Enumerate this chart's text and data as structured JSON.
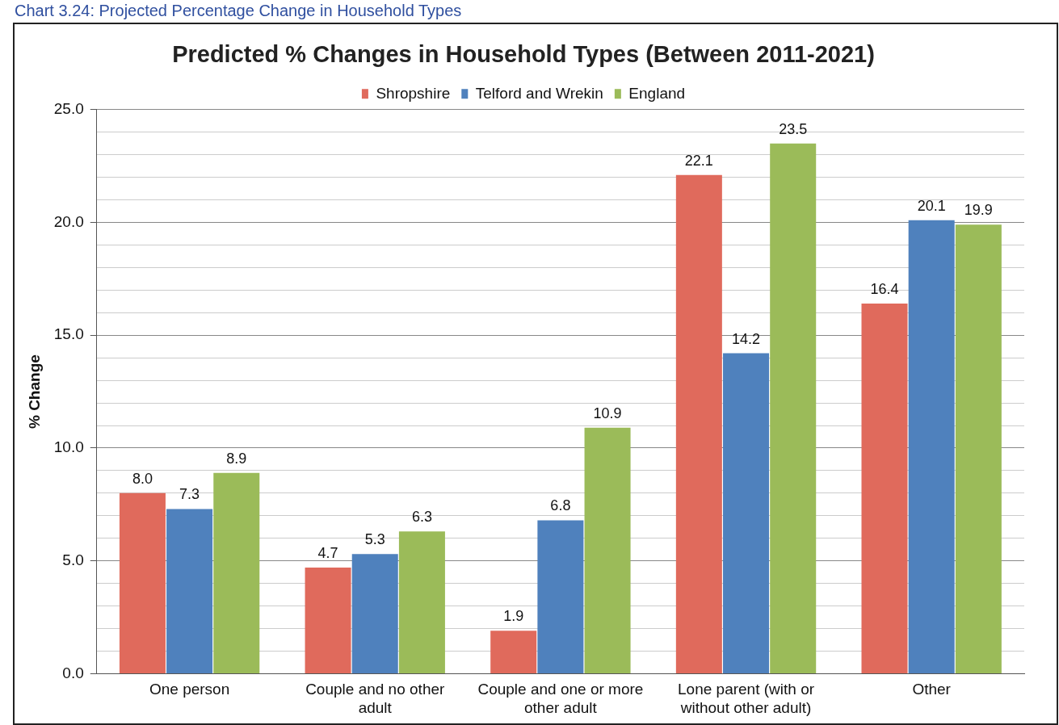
{
  "chart_data": {
    "type": "bar",
    "title": "Predicted % Changes in Household Types (Between 2011-2021)",
    "ylabel": "% Change",
    "annotations": [
      "Chart 3.24: Projected Percentage Change in Household Types"
    ],
    "categories": [
      "One person",
      "Couple and no other adult",
      "Couple and one or more other adult",
      "Lone parent (with or without other adult)",
      "Other"
    ],
    "series": [
      {
        "name": "Shropshire",
        "color": "#e06a5c",
        "values": [
          8.0,
          4.7,
          1.9,
          22.1,
          16.4
        ],
        "value_labels": [
          "8.0",
          "4.7",
          "1.9",
          "22.1",
          "16.4"
        ]
      },
      {
        "name": "Telford and Wrekin",
        "color": "#4f81bd",
        "values": [
          7.3,
          5.3,
          6.8,
          14.2,
          20.1
        ],
        "value_labels": [
          "7.3",
          "5.3",
          "6.8",
          "14.2",
          "20.1"
        ]
      },
      {
        "name": "England",
        "color": "#9bbb59",
        "values": [
          8.9,
          6.3,
          10.9,
          23.5,
          19.9
        ],
        "value_labels": [
          "8.9",
          "6.3",
          "10.9",
          "23.5",
          "19.9"
        ]
      }
    ],
    "ylim": [
      0,
      25
    ],
    "yticks": [
      {
        "value": 0,
        "label": "0.0"
      },
      {
        "value": 1,
        "label": null
      },
      {
        "value": 2,
        "label": null
      },
      {
        "value": 3,
        "label": null
      },
      {
        "value": 4,
        "label": null
      },
      {
        "value": 5,
        "label": "5.0"
      },
      {
        "value": 6,
        "label": null
      },
      {
        "value": 7,
        "label": null
      },
      {
        "value": 8,
        "label": null
      },
      {
        "value": 9,
        "label": null
      },
      {
        "value": 10,
        "label": "10.0"
      },
      {
        "value": 11,
        "label": null
      },
      {
        "value": 12,
        "label": null
      },
      {
        "value": 13,
        "label": null
      },
      {
        "value": 14,
        "label": null
      },
      {
        "value": 15,
        "label": "15.0"
      },
      {
        "value": 16,
        "label": null
      },
      {
        "value": 17,
        "label": null
      },
      {
        "value": 18,
        "label": null
      },
      {
        "value": 19,
        "label": null
      },
      {
        "value": 20,
        "label": "20.0"
      },
      {
        "value": 21,
        "label": null
      },
      {
        "value": 22,
        "label": null
      },
      {
        "value": 23,
        "label": null
      },
      {
        "value": 24,
        "label": null
      },
      {
        "value": 25,
        "label": "25.0"
      }
    ],
    "grid": "y",
    "legend": "top"
  }
}
